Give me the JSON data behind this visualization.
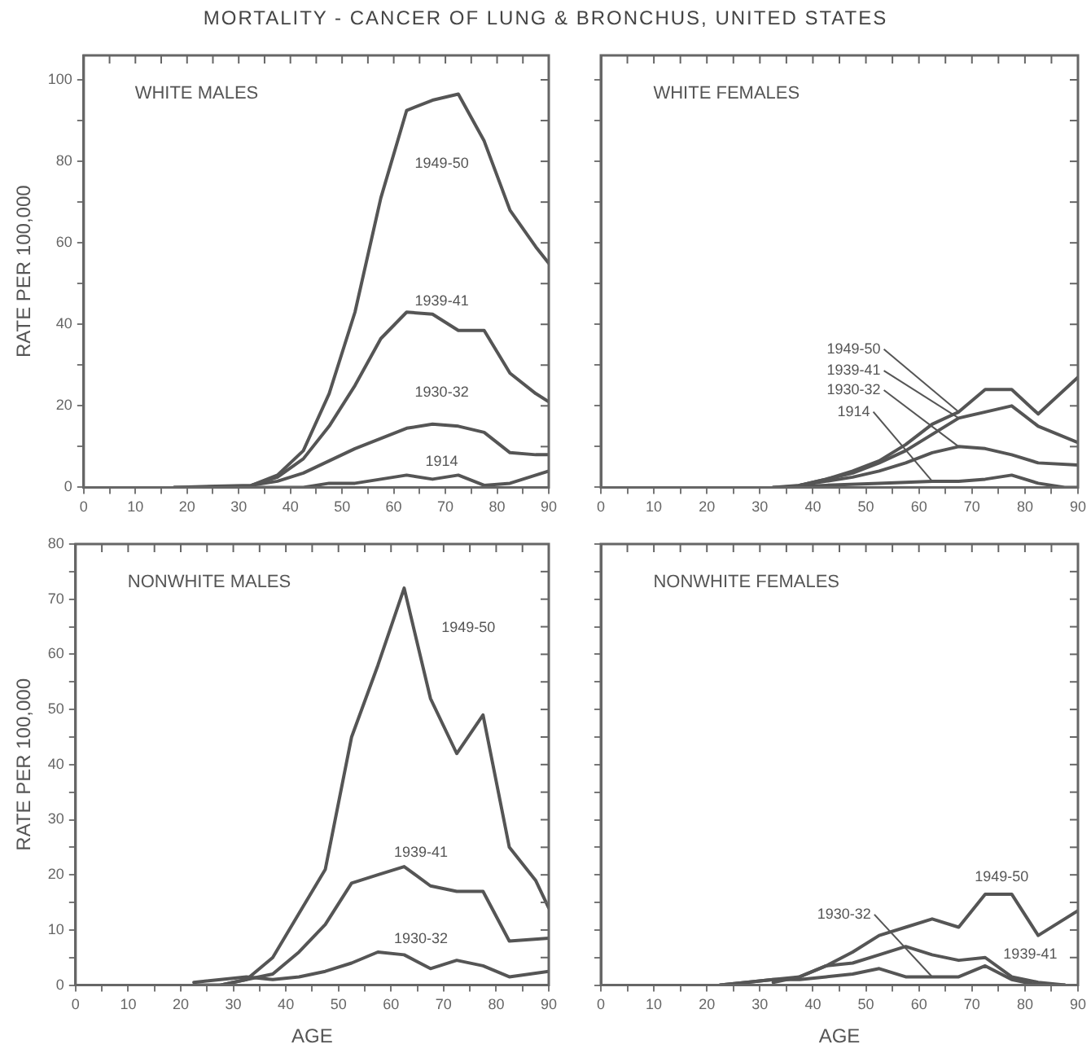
{
  "chart_data": [
    {
      "type": "line",
      "title": "MORTALITY - CANCER OF LUNG & BRONCHUS, UNITED STATES",
      "subtitle": "WHITE MALES",
      "ylabel": "RATE PER 100,000",
      "xlim": [
        0,
        90
      ],
      "ylim": [
        0,
        106
      ],
      "xticks": [
        0,
        {
          "value": 5,
          "label": null
        },
        10,
        {
          "value": 15,
          "label": null
        },
        20,
        {
          "value": 25,
          "label": null
        },
        30,
        {
          "value": 35,
          "label": null
        },
        40,
        {
          "value": 45,
          "label": null
        },
        50,
        {
          "value": 55,
          "label": null
        },
        60,
        {
          "value": 65,
          "label": null
        },
        70,
        {
          "value": 75,
          "label": null
        },
        80,
        {
          "value": 85,
          "label": null
        },
        90
      ],
      "yticks": [
        0,
        {
          "value": 10,
          "label": null
        },
        20,
        {
          "value": 30,
          "label": null
        },
        40,
        {
          "value": 50,
          "label": null
        },
        60,
        {
          "value": 70,
          "label": null
        },
        80,
        {
          "value": 90,
          "label": null
        },
        100
      ],
      "grid": false,
      "legend": false,
      "marker": "none",
      "line_style": "solid",
      "series": [
        {
          "name": "1949-50",
          "color": "#555555",
          "x": [
            17.5,
            32.5,
            37.5,
            42.5,
            47.5,
            52.5,
            57.5,
            62.5,
            67.5,
            72.5,
            77.5,
            82.5,
            87.5,
            90
          ],
          "values": [
            0,
            0.5,
            3,
            9,
            23,
            43,
            71,
            92.5,
            95,
            96.5,
            85,
            68,
            59,
            55
          ]
        },
        {
          "name": "1939-41",
          "color": "#555555",
          "x": [
            32.5,
            37.5,
            42.5,
            47.5,
            52.5,
            57.5,
            62.5,
            67.5,
            72.5,
            77.5,
            82.5,
            87.5,
            90
          ],
          "values": [
            0.5,
            2.5,
            7,
            15,
            25,
            36.5,
            43,
            42.5,
            38.5,
            38.5,
            28,
            23,
            21
          ]
        },
        {
          "name": "1930-32",
          "color": "#555555",
          "x": [
            32.5,
            37.5,
            42.5,
            47.5,
            52.5,
            57.5,
            62.5,
            67.5,
            72.5,
            77.5,
            82.5,
            87.5,
            90
          ],
          "values": [
            0.5,
            1.5,
            3.5,
            6.5,
            9.5,
            12,
            14.5,
            15.5,
            15,
            13.5,
            8.5,
            8,
            8
          ]
        },
        {
          "name": "1914",
          "color": "#555555",
          "x": [
            17.5,
            32.5,
            42.5,
            47.5,
            52.5,
            57.5,
            62.5,
            67.5,
            72.5,
            77.5,
            82.5,
            87.5,
            90
          ],
          "values": [
            0,
            0,
            0,
            1,
            1,
            2,
            3,
            2,
            3,
            0.5,
            1,
            3,
            4
          ]
        }
      ]
    },
    {
      "type": "line",
      "subtitle": "WHITE FEMALES",
      "xlim": [
        0,
        90
      ],
      "ylim": [
        0,
        106
      ],
      "tick_labels": "x",
      "xticks": [
        0,
        {
          "value": 5,
          "label": null
        },
        10,
        {
          "value": 15,
          "label": null
        },
        20,
        {
          "value": 25,
          "label": null
        },
        30,
        {
          "value": 35,
          "label": null
        },
        40,
        {
          "value": 45,
          "label": null
        },
        50,
        {
          "value": 55,
          "label": null
        },
        60,
        {
          "value": 65,
          "label": null
        },
        70,
        {
          "value": 75,
          "label": null
        },
        80,
        {
          "value": 85,
          "label": null
        },
        90
      ],
      "yticks": [
        0,
        {
          "value": 10,
          "label": null
        },
        20,
        {
          "value": 30,
          "label": null
        },
        40,
        {
          "value": 50,
          "label": null
        },
        60,
        {
          "value": 70,
          "label": null
        },
        80,
        {
          "value": 90,
          "label": null
        },
        100
      ],
      "grid": false,
      "legend": false,
      "marker": "none",
      "line_style": "solid",
      "series": [
        {
          "name": "1949-50",
          "color": "#555555",
          "x": [
            32.5,
            37.5,
            42.5,
            47.5,
            52.5,
            57.5,
            62.5,
            67.5,
            72.5,
            77.5,
            82.5,
            90
          ],
          "values": [
            0,
            0.5,
            2,
            4,
            6.5,
            10.5,
            15.5,
            18.5,
            24,
            24,
            18,
            27
          ]
        },
        {
          "name": "1939-41",
          "color": "#555555",
          "x": [
            37.5,
            42.5,
            47.5,
            52.5,
            57.5,
            62.5,
            67.5,
            72.5,
            77.5,
            82.5,
            90
          ],
          "values": [
            0.5,
            2,
            3.5,
            6,
            9,
            13,
            17,
            18.5,
            20,
            15,
            11
          ]
        },
        {
          "name": "1930-32",
          "color": "#555555",
          "x": [
            37.5,
            42.5,
            47.5,
            52.5,
            57.5,
            62.5,
            67.5,
            72.5,
            77.5,
            82.5,
            90
          ],
          "values": [
            0.5,
            1.5,
            2.5,
            4,
            6,
            8.5,
            10,
            9.5,
            8,
            6,
            5.5
          ]
        },
        {
          "name": "1914",
          "color": "#555555",
          "x": [
            32.5,
            42.5,
            52.5,
            62.5,
            67.5,
            72.5,
            77.5,
            82.5,
            87.5,
            90
          ],
          "values": [
            0,
            0.5,
            1,
            1.5,
            1.5,
            2,
            3,
            1,
            0,
            0
          ]
        }
      ]
    },
    {
      "type": "line",
      "subtitle": "NONWHITE MALES",
      "xlabel": "AGE",
      "ylabel": "RATE PER 100,000",
      "xlim": [
        0,
        90
      ],
      "ylim": [
        0,
        80
      ],
      "xticks": [
        0,
        {
          "value": 5,
          "label": null
        },
        10,
        {
          "value": 15,
          "label": null
        },
        20,
        {
          "value": 25,
          "label": null
        },
        30,
        {
          "value": 35,
          "label": null
        },
        40,
        {
          "value": 45,
          "label": null
        },
        50,
        {
          "value": 55,
          "label": null
        },
        60,
        {
          "value": 65,
          "label": null
        },
        70,
        {
          "value": 75,
          "label": null
        },
        80,
        {
          "value": 85,
          "label": null
        },
        90
      ],
      "yticks": [
        0,
        {
          "value": 5,
          "label": null
        },
        10,
        {
          "value": 15,
          "label": null
        },
        20,
        {
          "value": 25,
          "label": null
        },
        30,
        {
          "value": 35,
          "label": null
        },
        40,
        {
          "value": 45,
          "label": null
        },
        50,
        {
          "value": 55,
          "label": null
        },
        60,
        {
          "value": 65,
          "label": null
        },
        70,
        {
          "value": 75,
          "label": null
        },
        80
      ],
      "grid": false,
      "legend": false,
      "marker": "none",
      "line_style": "solid",
      "series": [
        {
          "name": "1949-50",
          "color": "#555555",
          "x": [
            22.5,
            27.5,
            32.5,
            37.5,
            42.5,
            47.5,
            52.5,
            57.5,
            62.5,
            67.5,
            72.5,
            77.5,
            82.5,
            87.5,
            90
          ],
          "values": [
            0,
            0,
            1,
            5,
            13,
            21,
            45,
            58,
            72,
            52,
            42,
            49,
            25,
            19,
            14
          ]
        },
        {
          "name": "1939-41",
          "color": "#555555",
          "x": [
            27.5,
            32.5,
            37.5,
            42.5,
            47.5,
            52.5,
            57.5,
            62.5,
            67.5,
            72.5,
            77.5,
            82.5,
            90
          ],
          "values": [
            0,
            1,
            2,
            6,
            11,
            18.5,
            20,
            21.5,
            18,
            17,
            17,
            8,
            8.5
          ]
        },
        {
          "name": "1930-32",
          "color": "#555555",
          "x": [
            22.5,
            32.5,
            37.5,
            42.5,
            47.5,
            52.5,
            57.5,
            62.5,
            67.5,
            72.5,
            77.5,
            82.5,
            90
          ],
          "values": [
            0.5,
            1.5,
            1,
            1.5,
            2.5,
            4,
            6,
            5.5,
            3,
            4.5,
            3.5,
            1.5,
            2.5
          ]
        }
      ]
    },
    {
      "type": "line",
      "subtitle": "NONWHITE FEMALES",
      "xlabel": "AGE",
      "xlim": [
        0,
        90
      ],
      "ylim": [
        0,
        80
      ],
      "tick_labels": "x",
      "xticks": [
        0,
        {
          "value": 5,
          "label": null
        },
        10,
        {
          "value": 15,
          "label": null
        },
        20,
        {
          "value": 25,
          "label": null
        },
        30,
        {
          "value": 35,
          "label": null
        },
        40,
        {
          "value": 45,
          "label": null
        },
        50,
        {
          "value": 55,
          "label": null
        },
        60,
        {
          "value": 65,
          "label": null
        },
        70,
        {
          "value": 75,
          "label": null
        },
        80,
        {
          "value": 85,
          "label": null
        },
        90
      ],
      "yticks": [
        0,
        {
          "value": 5,
          "label": null
        },
        10,
        {
          "value": 15,
          "label": null
        },
        20,
        {
          "value": 25,
          "label": null
        },
        30,
        {
          "value": 35,
          "label": null
        },
        40,
        {
          "value": 45,
          "label": null
        },
        50,
        {
          "value": 55,
          "label": null
        },
        60,
        {
          "value": 65,
          "label": null
        },
        70,
        {
          "value": 75,
          "label": null
        },
        80
      ],
      "grid": false,
      "legend": false,
      "marker": "none",
      "line_style": "solid",
      "series": [
        {
          "name": "1949-50",
          "color": "#555555",
          "x": [
            22.5,
            32.5,
            37.5,
            42.5,
            47.5,
            52.5,
            57.5,
            62.5,
            67.5,
            72.5,
            77.5,
            82.5,
            90
          ],
          "values": [
            0,
            1,
            1.5,
            3.5,
            6,
            9,
            10.5,
            12,
            10.5,
            16.5,
            16.5,
            9,
            13.5
          ]
        },
        {
          "name": "1939-41",
          "color": "#555555",
          "x": [
            32.5,
            37.5,
            42.5,
            47.5,
            52.5,
            57.5,
            62.5,
            67.5,
            72.5,
            77.5,
            82.5,
            87.5
          ],
          "values": [
            0.5,
            1.5,
            3.5,
            4,
            5.5,
            7,
            5.5,
            4.5,
            5,
            1.5,
            0.5,
            0
          ]
        },
        {
          "name": "1930-32",
          "color": "#555555",
          "x": [
            22.5,
            27.5,
            32.5,
            37.5,
            42.5,
            47.5,
            52.5,
            57.5,
            62.5,
            67.5,
            72.5,
            77.5,
            82.5,
            87.5
          ],
          "values": [
            0,
            0.5,
            1,
            1,
            1.5,
            2,
            3,
            1.5,
            1.5,
            1.5,
            3.5,
            1,
            0,
            0
          ]
        }
      ]
    }
  ]
}
